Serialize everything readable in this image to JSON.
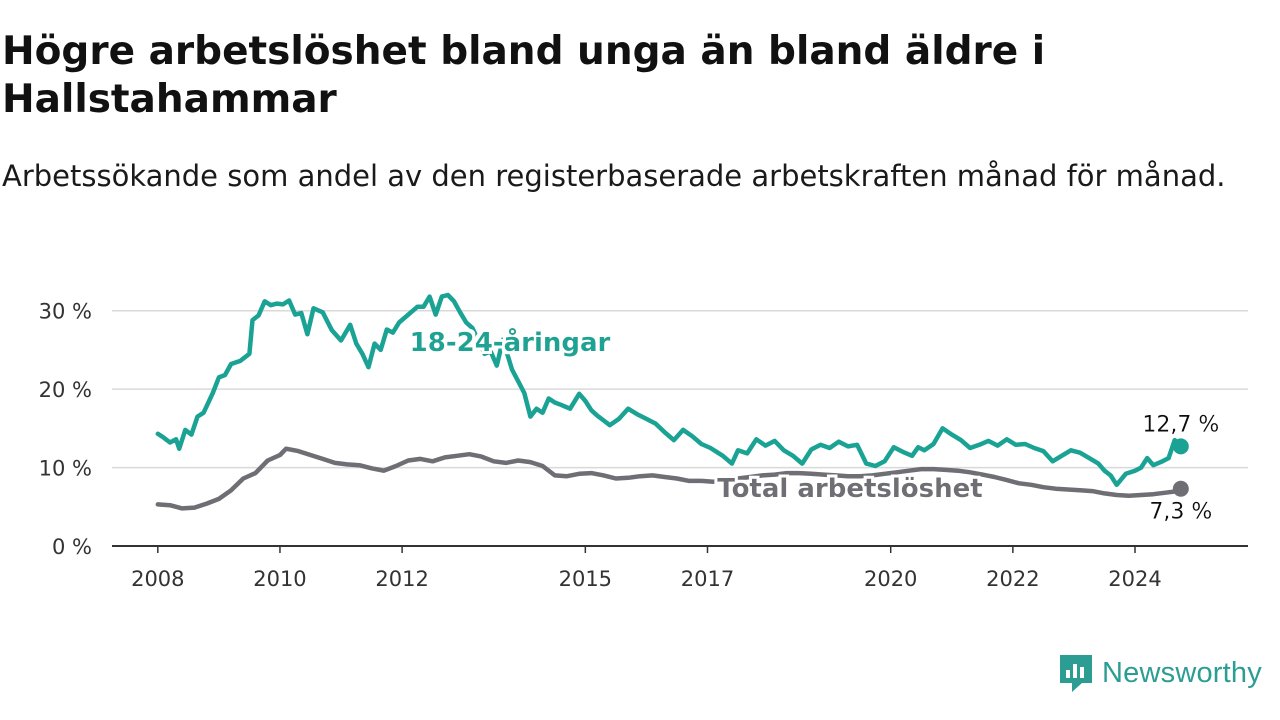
{
  "title": "Högre arbetslöshet bland unga än bland äldre i Hallstahammar",
  "subtitle": "Arbetssökande som andel av den registerbaserade arbetskraften månad för månad.",
  "brand": {
    "name": "Newsworthy",
    "icon": "newsworthy-logo-icon",
    "color": "#2c9d92"
  },
  "chart_data": {
    "type": "line",
    "x_unit": "decimal year",
    "x_ticks": [
      2008,
      2010,
      2012,
      2015,
      2017,
      2020,
      2022,
      2024
    ],
    "x_tick_labels": [
      "2008",
      "2010",
      "2012",
      "2015",
      "2017",
      "2020",
      "2022",
      "2024"
    ],
    "y_ticks": [
      0,
      10,
      20,
      30
    ],
    "y_tick_labels": [
      "0 %",
      "10 %",
      "20 %",
      "30 %"
    ],
    "xlim": [
      2007.25,
      2025.85
    ],
    "ylim": [
      0,
      32
    ],
    "grid": "horizontal",
    "series": [
      {
        "name": "18-24-åringar",
        "color": "#1aa394",
        "end_label": "12,7 %",
        "x": [
          2008.0,
          2008.1,
          2008.2,
          2008.3,
          2008.35,
          2008.45,
          2008.55,
          2008.65,
          2008.75,
          2008.9,
          2009.0,
          2009.1,
          2009.2,
          2009.35,
          2009.5,
          2009.55,
          2009.65,
          2009.75,
          2009.85,
          2009.95,
          2010.05,
          2010.15,
          2010.25,
          2010.35,
          2010.45,
          2010.55,
          2010.7,
          2010.85,
          2011.0,
          2011.15,
          2011.25,
          2011.35,
          2011.45,
          2011.55,
          2011.65,
          2011.75,
          2011.85,
          2011.95,
          2012.25,
          2012.35,
          2012.45,
          2012.55,
          2012.65,
          2012.75,
          2012.85,
          2012.95,
          2013.05,
          2013.15,
          2013.35,
          2013.45,
          2013.55,
          2013.65,
          2013.8,
          2013.9,
          2014.0,
          2014.1,
          2014.2,
          2014.3,
          2014.4,
          2014.5,
          2014.6,
          2014.75,
          2014.9,
          2015.0,
          2015.1,
          2015.2,
          2015.3,
          2015.4,
          2015.55,
          2015.7,
          2015.85,
          2016.0,
          2016.15,
          2016.3,
          2016.45,
          2016.6,
          2016.75,
          2016.9,
          2017.05,
          2017.25,
          2017.4,
          2017.5,
          2017.65,
          2017.8,
          2017.95,
          2018.1,
          2018.25,
          2018.4,
          2018.55,
          2018.7,
          2018.85,
          2019.0,
          2019.15,
          2019.3,
          2019.45,
          2019.6,
          2019.75,
          2019.9,
          2020.05,
          2020.2,
          2020.35,
          2020.45,
          2020.55,
          2020.7,
          2020.85,
          2021.0,
          2021.15,
          2021.3,
          2021.45,
          2021.6,
          2021.75,
          2021.9,
          2022.05,
          2022.2,
          2022.35,
          2022.5,
          2022.65,
          2022.8,
          2022.95,
          2023.1,
          2023.25,
          2023.4,
          2023.5,
          2023.6,
          2023.7,
          2023.85,
          2024.0,
          2024.1,
          2024.2,
          2024.3,
          2024.45,
          2024.55,
          2024.65,
          2024.75
        ],
        "y": [
          14.3,
          13.8,
          13.2,
          13.6,
          12.4,
          14.8,
          14.2,
          16.5,
          17.0,
          19.5,
          21.5,
          21.8,
          23.2,
          23.6,
          24.5,
          28.8,
          29.4,
          31.2,
          30.7,
          30.9,
          30.8,
          31.3,
          29.5,
          29.7,
          27.0,
          30.3,
          29.8,
          27.5,
          26.2,
          28.2,
          25.8,
          24.5,
          22.8,
          25.8,
          25.0,
          27.6,
          27.2,
          28.5,
          30.5,
          30.5,
          31.8,
          29.5,
          31.8,
          32.0,
          31.2,
          29.8,
          28.5,
          27.8,
          24.5,
          24.8,
          23.0,
          26.3,
          22.5,
          21.0,
          19.5,
          16.5,
          17.5,
          17.0,
          18.8,
          18.3,
          18.0,
          17.5,
          19.4,
          18.5,
          17.3,
          16.6,
          16.0,
          15.4,
          16.2,
          17.5,
          16.8,
          16.2,
          15.6,
          14.5,
          13.5,
          14.8,
          14.0,
          13.0,
          12.5,
          11.5,
          10.5,
          12.2,
          11.8,
          13.6,
          12.8,
          13.4,
          12.2,
          11.5,
          10.5,
          12.3,
          12.9,
          12.5,
          13.3,
          12.7,
          12.9,
          10.5,
          10.2,
          10.8,
          12.6,
          12.0,
          11.5,
          12.6,
          12.2,
          13.0,
          15.0,
          14.2,
          13.5,
          12.5,
          12.9,
          13.4,
          12.8,
          13.6,
          12.9,
          13.0,
          12.5,
          12.1,
          10.8,
          11.5,
          12.2,
          11.9,
          11.2,
          10.5,
          9.6,
          9.0,
          7.8,
          9.2,
          9.6,
          10.0,
          11.2,
          10.3,
          10.8,
          11.2,
          13.5,
          12.7
        ]
      },
      {
        "name": "Total arbetslöshet",
        "color": "#6f6e74",
        "end_label": "7,3 %",
        "x": [
          2008.0,
          2008.2,
          2008.4,
          2008.6,
          2008.8,
          2009.0,
          2009.2,
          2009.4,
          2009.6,
          2009.8,
          2010.0,
          2010.1,
          2010.3,
          2010.5,
          2010.7,
          2010.9,
          2011.1,
          2011.3,
          2011.5,
          2011.7,
          2011.9,
          2012.1,
          2012.3,
          2012.5,
          2012.7,
          2012.9,
          2013.1,
          2013.3,
          2013.5,
          2013.7,
          2013.9,
          2014.1,
          2014.3,
          2014.5,
          2014.7,
          2014.9,
          2015.1,
          2015.3,
          2015.5,
          2015.7,
          2015.9,
          2016.1,
          2016.3,
          2016.5,
          2016.7,
          2016.9,
          2017.1,
          2017.3,
          2017.5,
          2017.7,
          2017.9,
          2018.1,
          2018.3,
          2018.5,
          2018.7,
          2018.9,
          2019.1,
          2019.3,
          2019.5,
          2019.7,
          2019.9,
          2020.1,
          2020.3,
          2020.5,
          2020.7,
          2020.9,
          2021.1,
          2021.3,
          2021.5,
          2021.7,
          2021.9,
          2022.1,
          2022.3,
          2022.5,
          2022.7,
          2022.9,
          2023.1,
          2023.3,
          2023.5,
          2023.7,
          2023.9,
          2024.1,
          2024.3,
          2024.5,
          2024.7,
          2024.75
        ],
        "y": [
          5.3,
          5.2,
          4.8,
          4.9,
          5.4,
          6.0,
          7.1,
          8.6,
          9.3,
          10.9,
          11.6,
          12.4,
          12.1,
          11.6,
          11.1,
          10.6,
          10.4,
          10.3,
          9.9,
          9.6,
          10.2,
          10.9,
          11.1,
          10.8,
          11.3,
          11.5,
          11.7,
          11.4,
          10.8,
          10.6,
          10.9,
          10.7,
          10.2,
          9.0,
          8.9,
          9.2,
          9.3,
          9.0,
          8.6,
          8.7,
          8.9,
          9.0,
          8.8,
          8.6,
          8.3,
          8.3,
          8.2,
          8.4,
          8.6,
          8.8,
          9.0,
          9.1,
          9.3,
          9.3,
          9.2,
          9.1,
          9.0,
          8.9,
          8.9,
          9.0,
          9.2,
          9.4,
          9.6,
          9.8,
          9.8,
          9.7,
          9.6,
          9.4,
          9.1,
          8.8,
          8.4,
          8.0,
          7.8,
          7.5,
          7.3,
          7.2,
          7.1,
          7.0,
          6.7,
          6.5,
          6.4,
          6.5,
          6.6,
          6.8,
          7.0,
          7.3
        ]
      }
    ]
  }
}
